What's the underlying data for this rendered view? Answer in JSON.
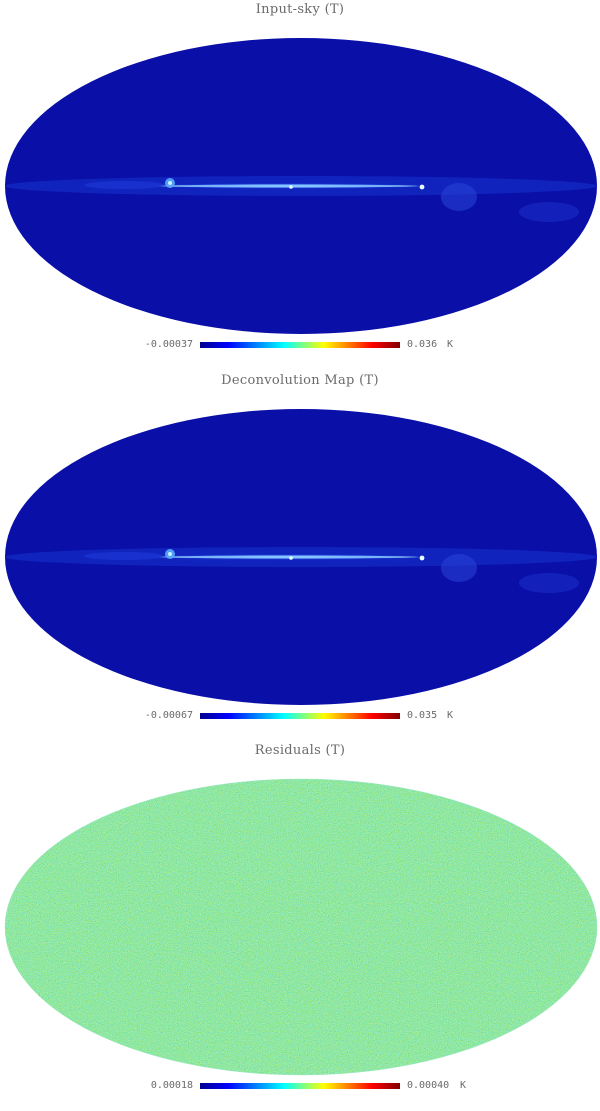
{
  "panels": [
    {
      "title": "Input-sky (T)",
      "cb_min": "-0.00037",
      "cb_max": "0.036",
      "cb_unit": "K"
    },
    {
      "title": "Deconvolution Map (T)",
      "cb_min": "-0.00067",
      "cb_max": "0.035",
      "cb_unit": "K"
    },
    {
      "title": "Residuals (T)",
      "cb_min": "0.00018",
      "cb_max": "0.00040",
      "cb_unit": "K"
    }
  ],
  "colormap": [
    "#00008f",
    "#0000ff",
    "#00ffff",
    "#ffff00",
    "#ff0000",
    "#800000"
  ],
  "map_colors": {
    "background": "#0a0fa8",
    "galactic_plane": "#3a78ff",
    "residual_base": "#5ee0b8"
  }
}
